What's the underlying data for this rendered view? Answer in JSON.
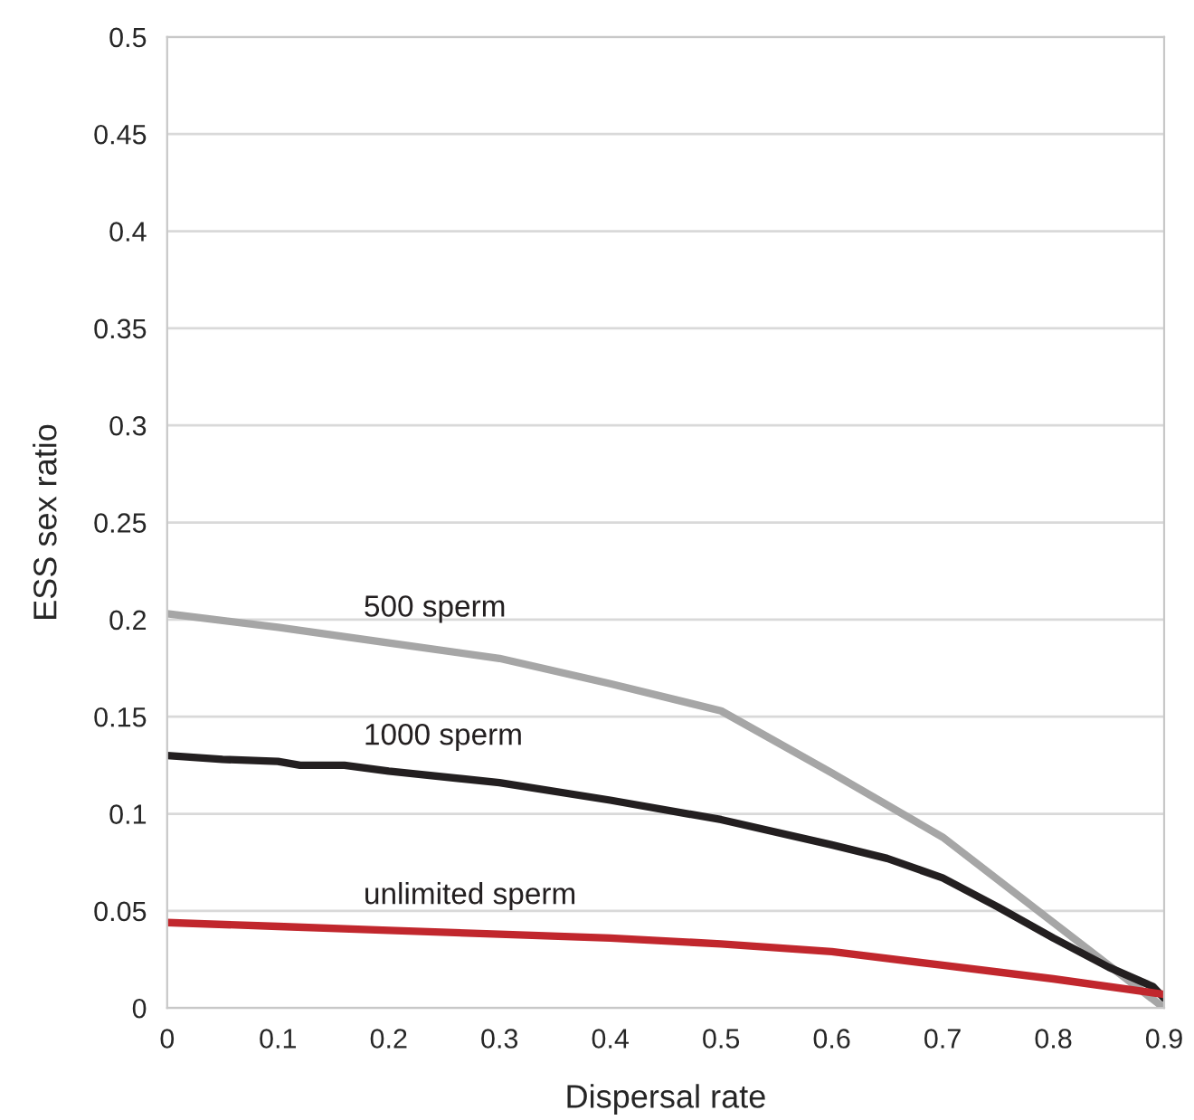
{
  "chart_data": {
    "type": "line",
    "xlabel": "Dispersal rate",
    "ylabel": "ESS sex ratio",
    "xlim": [
      0,
      0.9
    ],
    "xticks": [
      0,
      0.1,
      0.2,
      0.3,
      0.4,
      0.5,
      0.6,
      0.7,
      0.8,
      0.9
    ],
    "ylim": [
      0,
      0.5
    ],
    "yticks": [
      0,
      0.05,
      0.1,
      0.15,
      0.2,
      0.25,
      0.3,
      0.35,
      0.4,
      0.45,
      0.5
    ],
    "grid": "y",
    "legend": false,
    "marker": "none",
    "line_style": "solid",
    "series": [
      {
        "name": "500 sperm",
        "color": "#a6a6a6",
        "x": [
          0,
          0.1,
          0.2,
          0.3,
          0.4,
          0.5,
          0.6,
          0.7,
          0.8,
          0.9
        ],
        "values": [
          0.203,
          0.196,
          0.188,
          0.18,
          0.167,
          0.153,
          0.121,
          0.088,
          0.044,
          0.0
        ]
      },
      {
        "name": "1000 sperm",
        "color": "#231f20",
        "x": [
          0,
          0.05,
          0.1,
          0.12,
          0.16,
          0.2,
          0.3,
          0.4,
          0.5,
          0.6,
          0.65,
          0.7,
          0.75,
          0.8,
          0.85,
          0.87,
          0.89,
          0.9
        ],
        "values": [
          0.13,
          0.128,
          0.127,
          0.125,
          0.125,
          0.122,
          0.116,
          0.107,
          0.097,
          0.084,
          0.077,
          0.067,
          0.052,
          0.036,
          0.021,
          0.016,
          0.011,
          0.005
        ]
      },
      {
        "name": "unlimited sperm",
        "color": "#c1272d",
        "x": [
          0,
          0.1,
          0.2,
          0.3,
          0.4,
          0.5,
          0.6,
          0.7,
          0.8,
          0.9
        ],
        "values": [
          0.044,
          0.042,
          0.04,
          0.038,
          0.036,
          0.033,
          0.029,
          0.022,
          0.015,
          0.007
        ]
      }
    ]
  }
}
